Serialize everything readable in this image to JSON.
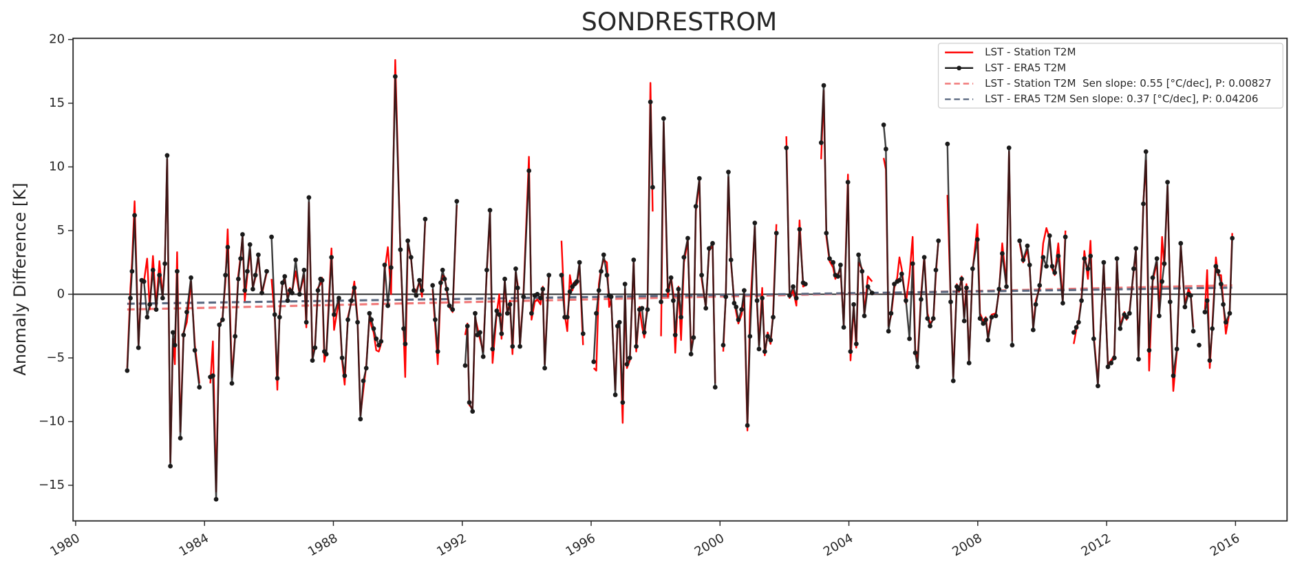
{
  "chart_data": {
    "type": "line",
    "title": "SONDRESTROM",
    "y_label": "Anomaly Difference [K]",
    "xlim": [
      1979.92,
      2017.6
    ],
    "xticks": [
      1980,
      1984,
      1988,
      1992,
      1996,
      2000,
      2004,
      2008,
      2012,
      2016
    ],
    "ylim": [
      -17.8,
      20.1
    ],
    "yticks": [
      {
        "value": -15,
        "label": "−15"
      },
      {
        "value": -10,
        "label": "−10"
      },
      {
        "value": -5,
        "label": "−5"
      },
      0,
      5,
      10,
      15,
      20
    ],
    "hline": 0,
    "legend": "upper right",
    "x": [
      1981.6,
      1981.7,
      1981.75,
      1981.83,
      1981.95,
      1982.05,
      1982.12,
      1982.22,
      1982.3,
      1982.4,
      1982.5,
      1982.6,
      1982.7,
      1982.77,
      1982.84,
      1982.94,
      1983.02,
      1983.08,
      1983.15,
      1983.25,
      1983.35,
      1983.45,
      1983.58,
      1983.7,
      1983.84,
      1984.0,
      1984.18,
      1984.26,
      1984.36,
      1984.46,
      1984.56,
      1984.65,
      1984.72,
      1984.85,
      1984.95,
      1985.05,
      1985.12,
      1985.18,
      1985.25,
      1985.33,
      1985.41,
      1985.5,
      1985.58,
      1985.67,
      1985.78,
      1985.93,
      1986.0,
      1986.08,
      1986.18,
      1986.26,
      1986.33,
      1986.42,
      1986.49,
      1986.58,
      1986.65,
      1986.72,
      1986.83,
      1986.95,
      1987.09,
      1987.16,
      1987.24,
      1987.35,
      1987.43,
      1987.52,
      1987.6,
      1987.65,
      1987.72,
      1987.78,
      1987.94,
      1988.02,
      1988.17,
      1988.27,
      1988.35,
      1988.45,
      1988.56,
      1988.65,
      1988.75,
      1988.84,
      1988.93,
      1989.02,
      1989.12,
      1989.18,
      1989.25,
      1989.33,
      1989.41,
      1989.48,
      1989.59,
      1989.69,
      1989.79,
      1989.92,
      1990.08,
      1990.18,
      1990.23,
      1990.31,
      1990.41,
      1990.5,
      1990.57,
      1990.67,
      1990.75,
      1990.85,
      1990.95,
      1991.08,
      1991.16,
      1991.24,
      1991.33,
      1991.39,
      1991.45,
      1991.52,
      1991.6,
      1991.7,
      1991.83,
      1991.95,
      1992.09,
      1992.16,
      1992.22,
      1992.32,
      1992.4,
      1992.47,
      1992.55,
      1992.65,
      1992.76,
      1992.86,
      1992.94,
      1993.07,
      1993.15,
      1993.22,
      1993.32,
      1993.4,
      1993.48,
      1993.56,
      1993.66,
      1993.72,
      1993.79,
      1993.9,
      1994.07,
      1994.15,
      1994.25,
      1994.33,
      1994.43,
      1994.5,
      1994.56,
      1994.69,
      1994.85,
      1995.08,
      1995.18,
      1995.26,
      1995.34,
      1995.42,
      1995.49,
      1995.56,
      1995.64,
      1995.75,
      1995.9,
      1996.08,
      1996.16,
      1996.24,
      1996.31,
      1996.39,
      1996.49,
      1996.56,
      1996.62,
      1996.75,
      1996.82,
      1996.88,
      1996.98,
      1997.05,
      1997.11,
      1997.2,
      1997.32,
      1997.4,
      1997.5,
      1997.58,
      1997.65,
      1997.75,
      1997.84,
      1997.91,
      1998.05,
      1998.17,
      1998.25,
      1998.38,
      1998.48,
      1998.55,
      1998.61,
      1998.71,
      1998.79,
      1998.88,
      1999.0,
      1999.1,
      1999.18,
      1999.25,
      1999.36,
      1999.43,
      1999.56,
      1999.66,
      1999.77,
      1999.85,
      1999.98,
      2000.1,
      2000.18,
      2000.26,
      2000.34,
      2000.44,
      2000.5,
      2000.57,
      2000.67,
      2000.75,
      2000.85,
      2000.93,
      2001.08,
      2001.15,
      2001.21,
      2001.31,
      2001.39,
      2001.48,
      2001.57,
      2001.65,
      2001.75,
      2001.9,
      2002.06,
      2002.16,
      2002.27,
      2002.37,
      2002.47,
      2002.58,
      2002.65,
      2002.9,
      2003.14,
      2003.22,
      2003.3,
      2003.4,
      2003.51,
      2003.58,
      2003.66,
      2003.74,
      2003.84,
      2003.97,
      2004.05,
      2004.15,
      2004.23,
      2004.3,
      2004.41,
      2004.48,
      2004.59,
      2004.72,
      2004.9,
      2005.08,
      2005.15,
      2005.23,
      2005.31,
      2005.41,
      2005.5,
      2005.57,
      2005.64,
      2005.77,
      2005.88,
      2005.98,
      2006.06,
      2006.13,
      2006.24,
      2006.34,
      2006.44,
      2006.52,
      2006.62,
      2006.7,
      2006.78,
      2006.95,
      2007.06,
      2007.16,
      2007.24,
      2007.35,
      2007.42,
      2007.5,
      2007.58,
      2007.65,
      2007.73,
      2007.84,
      2007.99,
      2008.07,
      2008.17,
      2008.25,
      2008.32,
      2008.43,
      2008.56,
      2008.66,
      2008.76,
      2008.89,
      2008.97,
      2009.07,
      2009.2,
      2009.3,
      2009.41,
      2009.54,
      2009.61,
      2009.72,
      2009.8,
      2009.92,
      2010.03,
      2010.13,
      2010.23,
      2010.31,
      2010.39,
      2010.5,
      2010.64,
      2010.72,
      2010.88,
      2010.98,
      2011.06,
      2011.13,
      2011.22,
      2011.31,
      2011.42,
      2011.5,
      2011.6,
      2011.73,
      2011.91,
      2012.04,
      2012.14,
      2012.24,
      2012.32,
      2012.42,
      2012.55,
      2012.62,
      2012.71,
      2012.84,
      2012.91,
      2012.99,
      2013.14,
      2013.22,
      2013.32,
      2013.43,
      2013.56,
      2013.63,
      2013.72,
      2013.79,
      2013.89,
      2013.97,
      2014.07,
      2014.18,
      2014.3,
      2014.43,
      2014.54,
      2014.61,
      2014.69,
      2014.78,
      2014.87,
      2014.96,
      2015.05,
      2015.12,
      2015.2,
      2015.28,
      2015.39,
      2015.46,
      2015.55,
      2015.62,
      2015.7,
      2015.82,
      2015.9
    ],
    "series": [
      {
        "name": "LST - Station T2M",
        "color": "#ff0000",
        "linestyle": "solid",
        "values": [
          -5.8,
          0.5,
          2.5,
          7.3,
          -4,
          1.2,
          1.0,
          2.8,
          -1.2,
          3.0,
          -1.0,
          2.6,
          -0.2,
          2.6,
          10.6,
          -13.2,
          -3.5,
          -5.5,
          3.3,
          -10.8,
          -3.0,
          -2.2,
          1.0,
          -4.0,
          -7.0,
          null,
          -7.0,
          -3.7,
          -15.5,
          -2.5,
          -1.8,
          1.0,
          5.1,
          -6.5,
          -3.2,
          1.5,
          3.0,
          4.5,
          -0.5,
          1.5,
          3.5,
          0.5,
          1.3,
          3.0,
          0.0,
          1.7,
          null,
          1.2,
          -1.8,
          -7.5,
          -1.5,
          0.8,
          1.2,
          -0.3,
          0.5,
          0.2,
          1.8,
          0.0,
          1.5,
          -2.6,
          7.2,
          -5.0,
          -4.0,
          0.5,
          0.8,
          1.3,
          -5.3,
          -4.5,
          3.6,
          -2.8,
          -0.5,
          -5.2,
          -7.1,
          -1.8,
          -0.6,
          1.0,
          -2.0,
          -9.5,
          -7.5,
          -5.6,
          -1.7,
          -2.5,
          -3.0,
          -4.4,
          -4.5,
          -3.9,
          1.8,
          3.7,
          0.0,
          18.4,
          3.4,
          -3.0,
          -6.5,
          4.0,
          2.8,
          0.4,
          0.2,
          1.0,
          -0.2,
          5.8,
          null,
          0.4,
          -2.5,
          -5.5,
          0.5,
          1.5,
          1.4,
          0.2,
          -1.0,
          -1.4,
          7.0,
          null,
          -3.2,
          -2.3,
          -8.7,
          -9.0,
          -1.8,
          -2.6,
          -3.5,
          -4.5,
          1.7,
          6.4,
          -5.4,
          -1.5,
          0.0,
          -3.5,
          1.0,
          -1.6,
          -0.5,
          -4.7,
          1.7,
          0.8,
          -4.0,
          0.0,
          10.8,
          -2.0,
          -0.6,
          -0.4,
          -0.8,
          0.6,
          -5.5,
          1.6,
          null,
          4.2,
          -1.6,
          -2.9,
          1.5,
          0.3,
          1.0,
          0.8,
          2.3,
          -4.0,
          null,
          -5.8,
          -6.0,
          0.8,
          2.0,
          2.7,
          2.5,
          -1.0,
          -0.4,
          -7.5,
          -2.3,
          -2.5,
          -10.1,
          0.4,
          -5.8,
          -5.2,
          2.6,
          -4.5,
          -1.0,
          -2.5,
          -3.4,
          -0.8,
          16.6,
          6.5,
          null,
          -3.3,
          13.5,
          -0.2,
          1.4,
          0.0,
          -4.6,
          0.6,
          -3.6,
          2.5,
          4.2,
          -4.4,
          -3.2,
          6.5,
          8.9,
          1.2,
          -1.0,
          3.4,
          3.8,
          -7.0,
          null,
          -4.5,
          0.0,
          9.2,
          2.5,
          -0.5,
          -1.4,
          -2.3,
          -1.6,
          0.0,
          -10.7,
          -1.4,
          5.3,
          -0.8,
          -4.0,
          0.5,
          -4.8,
          -3.0,
          -3.9,
          -1.5,
          5.5,
          null,
          12.4,
          -0.3,
          0.3,
          -0.9,
          5.8,
          0.6,
          0.7,
          null,
          10.6,
          16.0,
          4.5,
          2.6,
          2.1,
          1.2,
          1.6,
          2.0,
          -2.4,
          9.4,
          -5.2,
          -1.0,
          -4.2,
          2.5,
          2.0,
          -1.5,
          1.4,
          1.0,
          null,
          10.7,
          9.8,
          -2.5,
          -1.7,
          0.5,
          1.3,
          2.9,
          2.0,
          -0.7,
          1.5,
          4.5,
          -4.3,
          -5.3,
          -0.1,
          3.0,
          -1.5,
          -2.3,
          -2.0,
          1.6,
          4.3,
          null,
          7.8,
          -0.5,
          -6.5,
          0.8,
          0.2,
          1.4,
          -1.8,
          0.8,
          -5.2,
          1.8,
          5.5,
          -1.5,
          -2.1,
          -1.8,
          -3.4,
          -1.6,
          -1.5,
          0.2,
          4.0,
          0.8,
          11.2,
          -3.7,
          null,
          4.0,
          2.5,
          3.5,
          2.1,
          -2.6,
          -0.5,
          0.5,
          4.0,
          5.2,
          4.4,
          2.0,
          1.5,
          4.0,
          -0.5,
          5.0,
          null,
          -3.9,
          -2.8,
          -2.1,
          -0.3,
          3.4,
          1.2,
          4.2,
          -3.2,
          -7.0,
          2.3,
          -5.5,
          -5.2,
          -4.8,
          2.6,
          -2.5,
          -1.4,
          -2.0,
          -1.3,
          1.8,
          3.5,
          -4.9,
          7.3,
          10.5,
          -6.0,
          1.0,
          2.5,
          -1.5,
          4.5,
          2.2,
          8.5,
          -0.4,
          -7.6,
          -4.5,
          3.8,
          -0.8,
          0.4,
          0.0,
          -2.6,
          null,
          null,
          null,
          -1.2,
          1.9,
          -5.8,
          -2.5,
          2.9,
          1.5,
          1.5,
          -0.6,
          -3.1,
          -1.3,
          4.8
        ]
      },
      {
        "name": "LST - ERA5 T2M",
        "color": "#1a1a1a",
        "linestyle": "solid",
        "marker": "o",
        "values": [
          -6,
          -0.3,
          1.8,
          6.2,
          -4.2,
          1.1,
          1.0,
          -1.8,
          -0.8,
          1.9,
          -1.2,
          1.5,
          -0.3,
          2.4,
          10.9,
          -13.5,
          -3.0,
          -4.0,
          1.8,
          -11.3,
          -3.2,
          -1.4,
          1.3,
          -4.4,
          -7.3,
          null,
          -6.5,
          -6.4,
          -16.1,
          -2.4,
          -2.0,
          1.5,
          3.7,
          -7.0,
          -3.3,
          1.2,
          2.8,
          4.7,
          0.3,
          1.8,
          3.9,
          0.4,
          1.5,
          3.1,
          0.1,
          1.8,
          null,
          4.5,
          -1.6,
          -6.6,
          -1.8,
          0.9,
          1.4,
          -0.5,
          0.3,
          0.1,
          2.7,
          0.0,
          1.9,
          -2.2,
          7.6,
          -5.2,
          -4.2,
          0.3,
          1.2,
          1.1,
          -4.5,
          -4.7,
          2.9,
          -1.6,
          -0.3,
          -5.0,
          -6.4,
          -2.0,
          -0.5,
          0.5,
          -2.2,
          -9.8,
          -6.8,
          -5.8,
          -1.5,
          -2.0,
          -2.7,
          -3.5,
          -4.0,
          -3.7,
          2.3,
          -0.9,
          2.1,
          17.1,
          3.5,
          -2.7,
          -3.9,
          4.2,
          2.9,
          0.3,
          -0.1,
          1.1,
          0.3,
          5.9,
          null,
          0.7,
          -2.0,
          -4.5,
          0.9,
          1.9,
          1.2,
          0.4,
          -0.9,
          -1.2,
          7.3,
          null,
          -5.6,
          -2.5,
          -8.5,
          -9.2,
          -1.5,
          -3.2,
          -3.0,
          -4.9,
          1.9,
          6.6,
          -4.3,
          -1.3,
          -1.6,
          -3.1,
          1.2,
          -1.5,
          -0.8,
          -4.1,
          2.0,
          0.5,
          -4.1,
          -0.2,
          9.7,
          -1.5,
          -0.1,
          0.0,
          -0.3,
          0.4,
          -5.8,
          1.5,
          null,
          1.5,
          -1.8,
          -1.8,
          0.2,
          0.6,
          0.8,
          1.0,
          2.5,
          -3.1,
          null,
          -5.3,
          -1.5,
          0.3,
          1.8,
          3.1,
          1.5,
          -0.1,
          -0.2,
          -7.9,
          -2.5,
          -2.2,
          -8.5,
          0.8,
          -5.5,
          -5.0,
          2.7,
          -4.1,
          -1.2,
          -1.1,
          -3.0,
          -1.2,
          15.1,
          8.4,
          null,
          -0.6,
          13.8,
          0.3,
          1.3,
          -0.5,
          -3.2,
          0.4,
          -1.8,
          2.9,
          4.4,
          -4.7,
          -3.4,
          6.9,
          9.1,
          1.5,
          -1.1,
          3.6,
          4.0,
          -7.3,
          null,
          -4.0,
          -0.2,
          9.6,
          2.7,
          -0.7,
          -1.0,
          -2.0,
          -1.2,
          0.3,
          -10.3,
          -3.3,
          5.6,
          -0.5,
          -4.3,
          -0.3,
          -4.5,
          -3.3,
          -3.6,
          -1.8,
          4.8,
          null,
          11.5,
          -0.1,
          0.6,
          -0.3,
          5.1,
          0.9,
          0.8,
          null,
          11.9,
          16.4,
          4.8,
          2.8,
          2.5,
          1.5,
          1.4,
          2.3,
          -2.6,
          8.8,
          -4.5,
          -0.8,
          -3.9,
          3.1,
          1.8,
          -1.7,
          0.6,
          0.1,
          null,
          13.3,
          11.4,
          -2.9,
          -1.5,
          0.8,
          1.0,
          1.1,
          1.6,
          -0.5,
          -3.5,
          2.4,
          -4.6,
          -5.7,
          -0.4,
          2.9,
          -1.9,
          -2.5,
          -1.9,
          1.9,
          4.2,
          null,
          11.8,
          -0.6,
          -6.8,
          0.6,
          0.4,
          1.2,
          -2.1,
          0.5,
          -5.4,
          2.0,
          4.3,
          -1.9,
          -2.3,
          -2.0,
          -3.6,
          -1.8,
          -1.7,
          0.4,
          3.2,
          0.6,
          11.5,
          -4.0,
          null,
          4.2,
          2.7,
          3.8,
          2.3,
          -2.8,
          -0.8,
          0.7,
          2.9,
          2.2,
          4.6,
          2.2,
          1.7,
          3.0,
          -0.7,
          4.5,
          null,
          -3.0,
          -2.6,
          -2.2,
          -0.5,
          2.8,
          2.0,
          3.0,
          -3.5,
          -7.2,
          2.5,
          -5.7,
          -5.4,
          -5.0,
          2.8,
          -2.7,
          -1.6,
          -1.8,
          -1.5,
          2.0,
          3.6,
          -5.1,
          7.1,
          11.2,
          -4.4,
          1.3,
          2.8,
          -1.7,
          1.0,
          2.4,
          8.8,
          -0.6,
          -6.4,
          -4.3,
          4.0,
          -1.0,
          0.0,
          -0.1,
          -2.9,
          null,
          -4.0,
          null,
          -1.4,
          -0.5,
          -5.2,
          -2.7,
          2.2,
          1.8,
          0.8,
          -0.8,
          -2.2,
          -1.5,
          4.4
        ]
      },
      {
        "name": "LST - Station T2M  Sen slope: 0.55 [°C/dec], P: 0.00827",
        "color": "#f07878",
        "linestyle": "dashed",
        "x": [
          1981.6,
          2015.9
        ],
        "values": [
          -1.2,
          0.7
        ]
      },
      {
        "name": "LST - ERA5 T2M Sen slope: 0.37 [°C/dec], P: 0.04206",
        "color": "#5a6880",
        "linestyle": "dashed",
        "x": [
          1981.6,
          2015.9
        ],
        "values": [
          -0.75,
          0.52
        ]
      }
    ]
  }
}
